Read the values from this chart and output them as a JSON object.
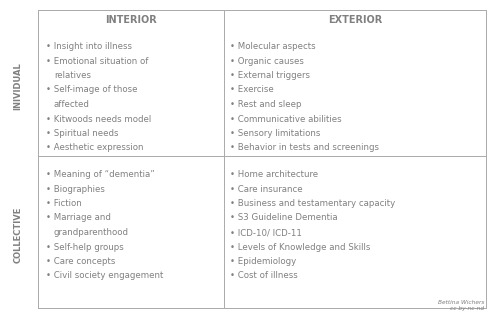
{
  "col_headers": [
    "INTERIOR",
    "EXTERIOR"
  ],
  "row_headers": [
    "INIVIDUAL",
    "COLLECTIVE"
  ],
  "cells": {
    "individual_interior": [
      "Insight into illness",
      "Emotional situation of\n  relatives",
      "Self-image of those\n  affected",
      "Kitwoods needs model",
      "Spiritual needs",
      "Aesthetic expression"
    ],
    "individual_exterior": [
      "Molecular aspects",
      "Organic causes",
      "External triggers",
      "Exercise",
      "Rest and sleep",
      "Communicative abilities",
      "Sensory limitations",
      "Behavior in tests and screenings"
    ],
    "collective_interior": [
      "Meaning of “dementia”",
      "Biographies",
      "Fiction",
      "Marriage and\n  grandparenthood",
      "Self-help groups",
      "Care concepts",
      "Civil society engagement"
    ],
    "collective_exterior": [
      "Home architecture",
      "Care insurance",
      "Business and testamentary capacity",
      "S3 Guideline Dementia",
      "ICD-10/ ICD-11",
      "Levels of Knowledge and Skills",
      "Epidemiology",
      "Cost of illness"
    ]
  },
  "credit": "Bettina Wichers\ncc by-nc-nd",
  "bg_color": "#ffffff",
  "text_color": "#808080",
  "header_color": "#808080",
  "line_color": "#aaaaaa",
  "bullet": "•"
}
